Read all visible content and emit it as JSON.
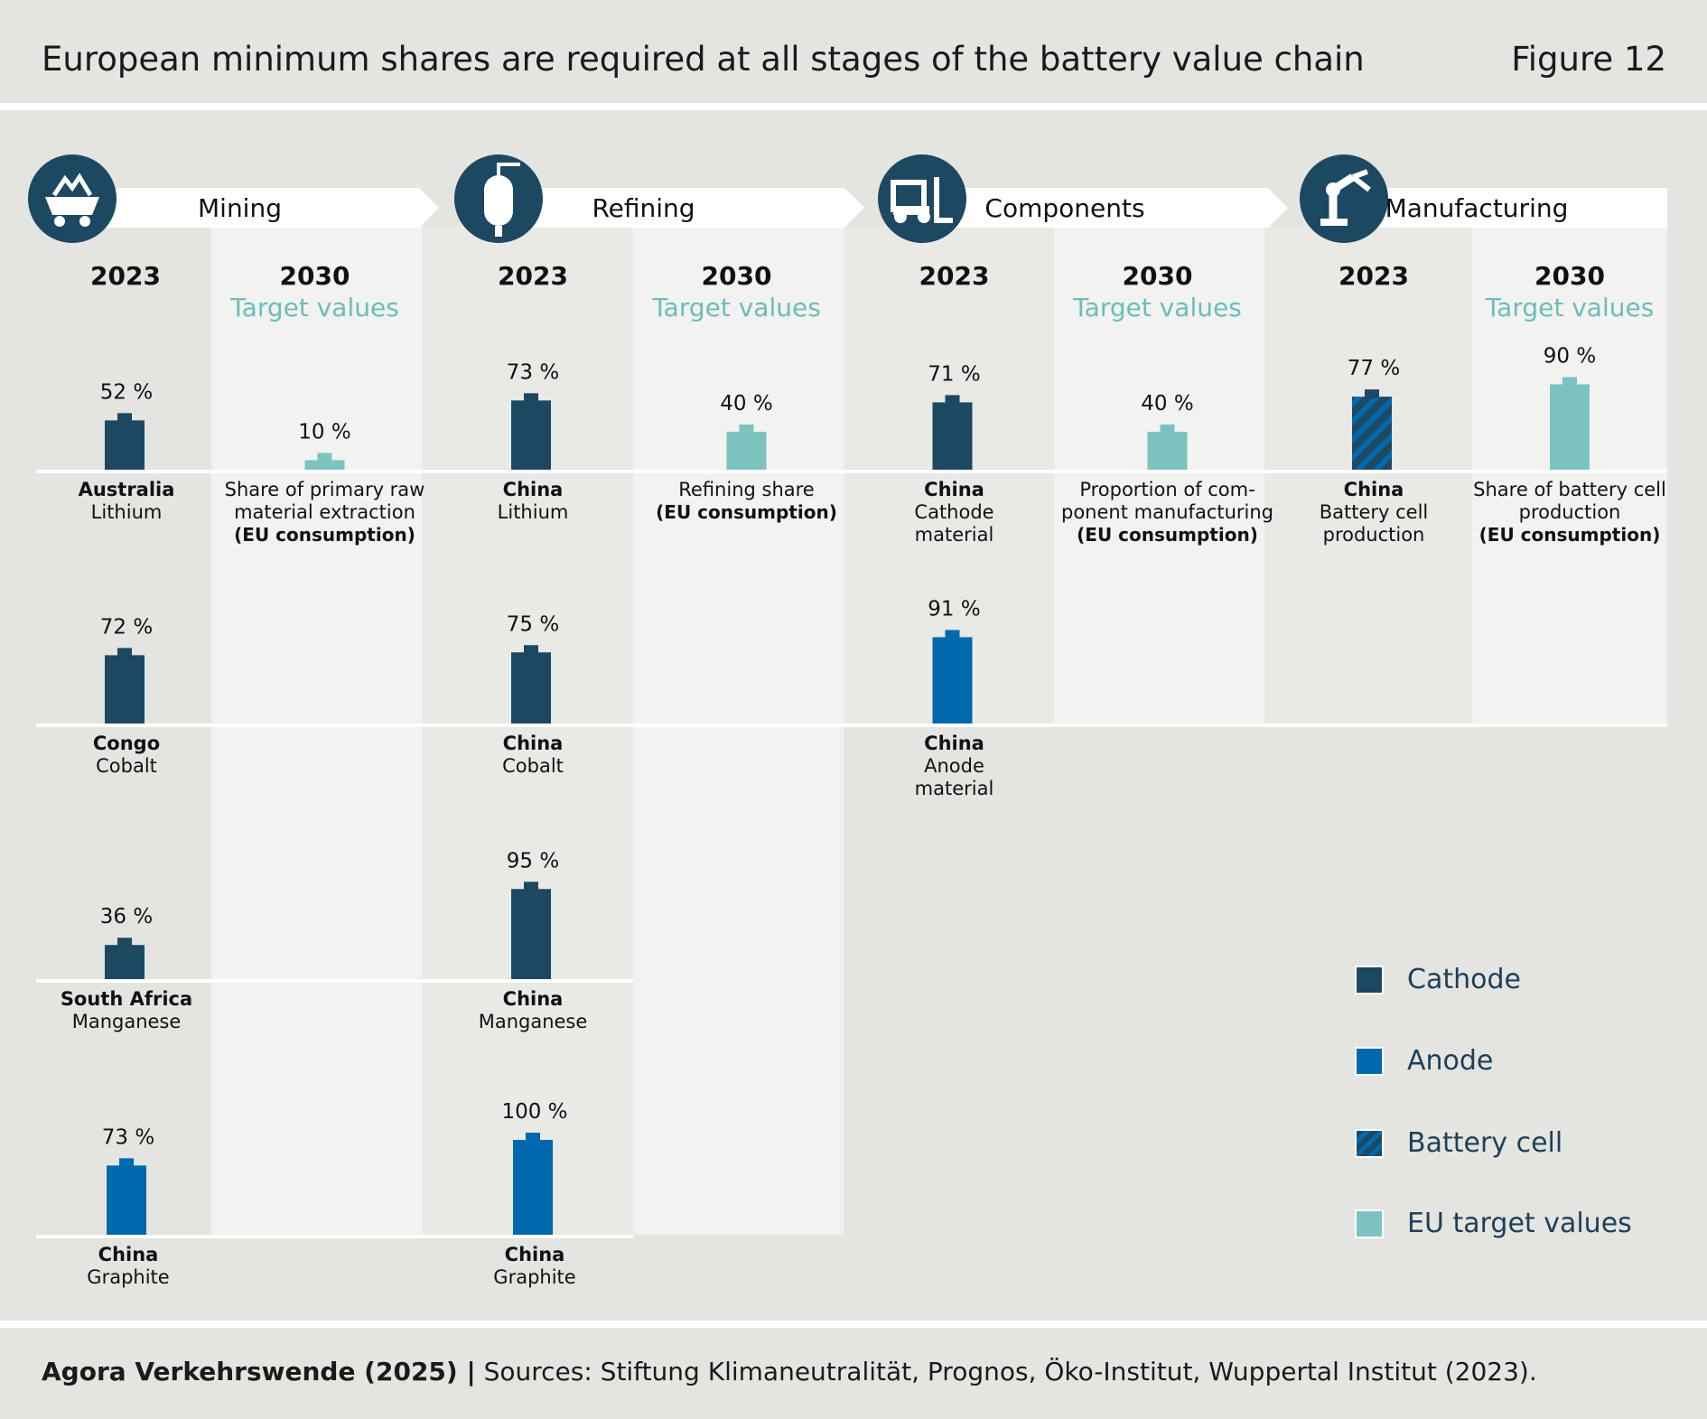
{
  "header": {
    "title": "European minimum shares are required at all stages of the battery value chain",
    "figure_label": "Figure 12"
  },
  "footer": {
    "source_bold": "Agora Verkehrswende (2025) |",
    "source_text": " Sources: Stiftung Klimaneutralität, Prognos, Öko-Institut, Wuppertal Institut (2023)."
  },
  "colors": {
    "cathode": "#1d4862",
    "anode": "#0068ad",
    "target": "#7cc3bf",
    "target_text": "#6cbdb8",
    "background": "#e4e4e0",
    "panel": "#f2f2f0"
  },
  "legend": [
    {
      "label": "Cathode",
      "style": "cathode"
    },
    {
      "label": "Anode",
      "style": "anode"
    },
    {
      "label": "Battery cell",
      "style": "battery"
    },
    {
      "label": "EU target values",
      "style": "target"
    }
  ],
  "chart_data": {
    "type": "bar",
    "unit": "%",
    "stages": [
      {
        "name": "Mining",
        "icon": "mine-cart-icon",
        "col_2023": "2023",
        "col_2030": "2030",
        "target_heading": "Target values",
        "items_2023": [
          {
            "value": 52,
            "label": "52 %",
            "country": "Australia",
            "material": [
              "Lithium"
            ],
            "type": "cathode"
          },
          {
            "value": 72,
            "label": "72 %",
            "country": "Congo",
            "material": [
              "Cobalt"
            ],
            "type": "cathode"
          },
          {
            "value": 36,
            "label": "36 %",
            "country": "South Africa",
            "material": [
              "Manganese"
            ],
            "type": "cathode"
          },
          {
            "value": 73,
            "label": "73 %",
            "country": "China",
            "material": [
              "Graphite"
            ],
            "type": "anode"
          }
        ],
        "target": {
          "value": 10,
          "label": "10 %",
          "desc": [
            "Share of primary raw",
            "material extraction"
          ],
          "desc_bold": "(EU consumption)"
        }
      },
      {
        "name": "Refining",
        "icon": "refining-tank-icon",
        "col_2023": "2023",
        "col_2030": "2030",
        "target_heading": "Target values",
        "items_2023": [
          {
            "value": 73,
            "label": "73 %",
            "country": "China",
            "material": [
              "Lithium"
            ],
            "type": "cathode"
          },
          {
            "value": 75,
            "label": "75 %",
            "country": "China",
            "material": [
              "Cobalt"
            ],
            "type": "cathode"
          },
          {
            "value": 95,
            "label": "95 %",
            "country": "China",
            "material": [
              "Manganese"
            ],
            "type": "cathode"
          },
          {
            "value": 100,
            "label": "100 %",
            "country": "China",
            "material": [
              "Graphite"
            ],
            "type": "anode"
          }
        ],
        "target": {
          "value": 40,
          "label": "40 %",
          "desc": [
            "Refining share"
          ],
          "desc_bold": "(EU consumption)"
        }
      },
      {
        "name": "Components",
        "icon": "forklift-icon",
        "col_2023": "2023",
        "col_2030": "2030",
        "target_heading": "Target values",
        "items_2023": [
          {
            "value": 71,
            "label": "71 %",
            "country": "China",
            "material": [
              "Cathode",
              "material"
            ],
            "type": "cathode"
          },
          {
            "value": 91,
            "label": "91 %",
            "country": "China",
            "material": [
              "Anode",
              "material"
            ],
            "type": "anode"
          }
        ],
        "target": {
          "value": 40,
          "label": "40 %",
          "desc": [
            "Proportion of com-",
            "ponent manufacturing"
          ],
          "desc_bold": "(EU consumption)"
        }
      },
      {
        "name": "Manufacturing",
        "icon": "robot-arm-icon",
        "col_2023": "2023",
        "col_2030": "2030",
        "target_heading": "Target values",
        "items_2023": [
          {
            "value": 77,
            "label": "77 %",
            "country": "China",
            "material": [
              "Battery cell",
              "production"
            ],
            "type": "battery"
          }
        ],
        "target": {
          "value": 90,
          "label": "90 %",
          "desc": [
            "Share of battery cell",
            "production"
          ],
          "desc_bold": "(EU consumption)"
        }
      }
    ]
  }
}
